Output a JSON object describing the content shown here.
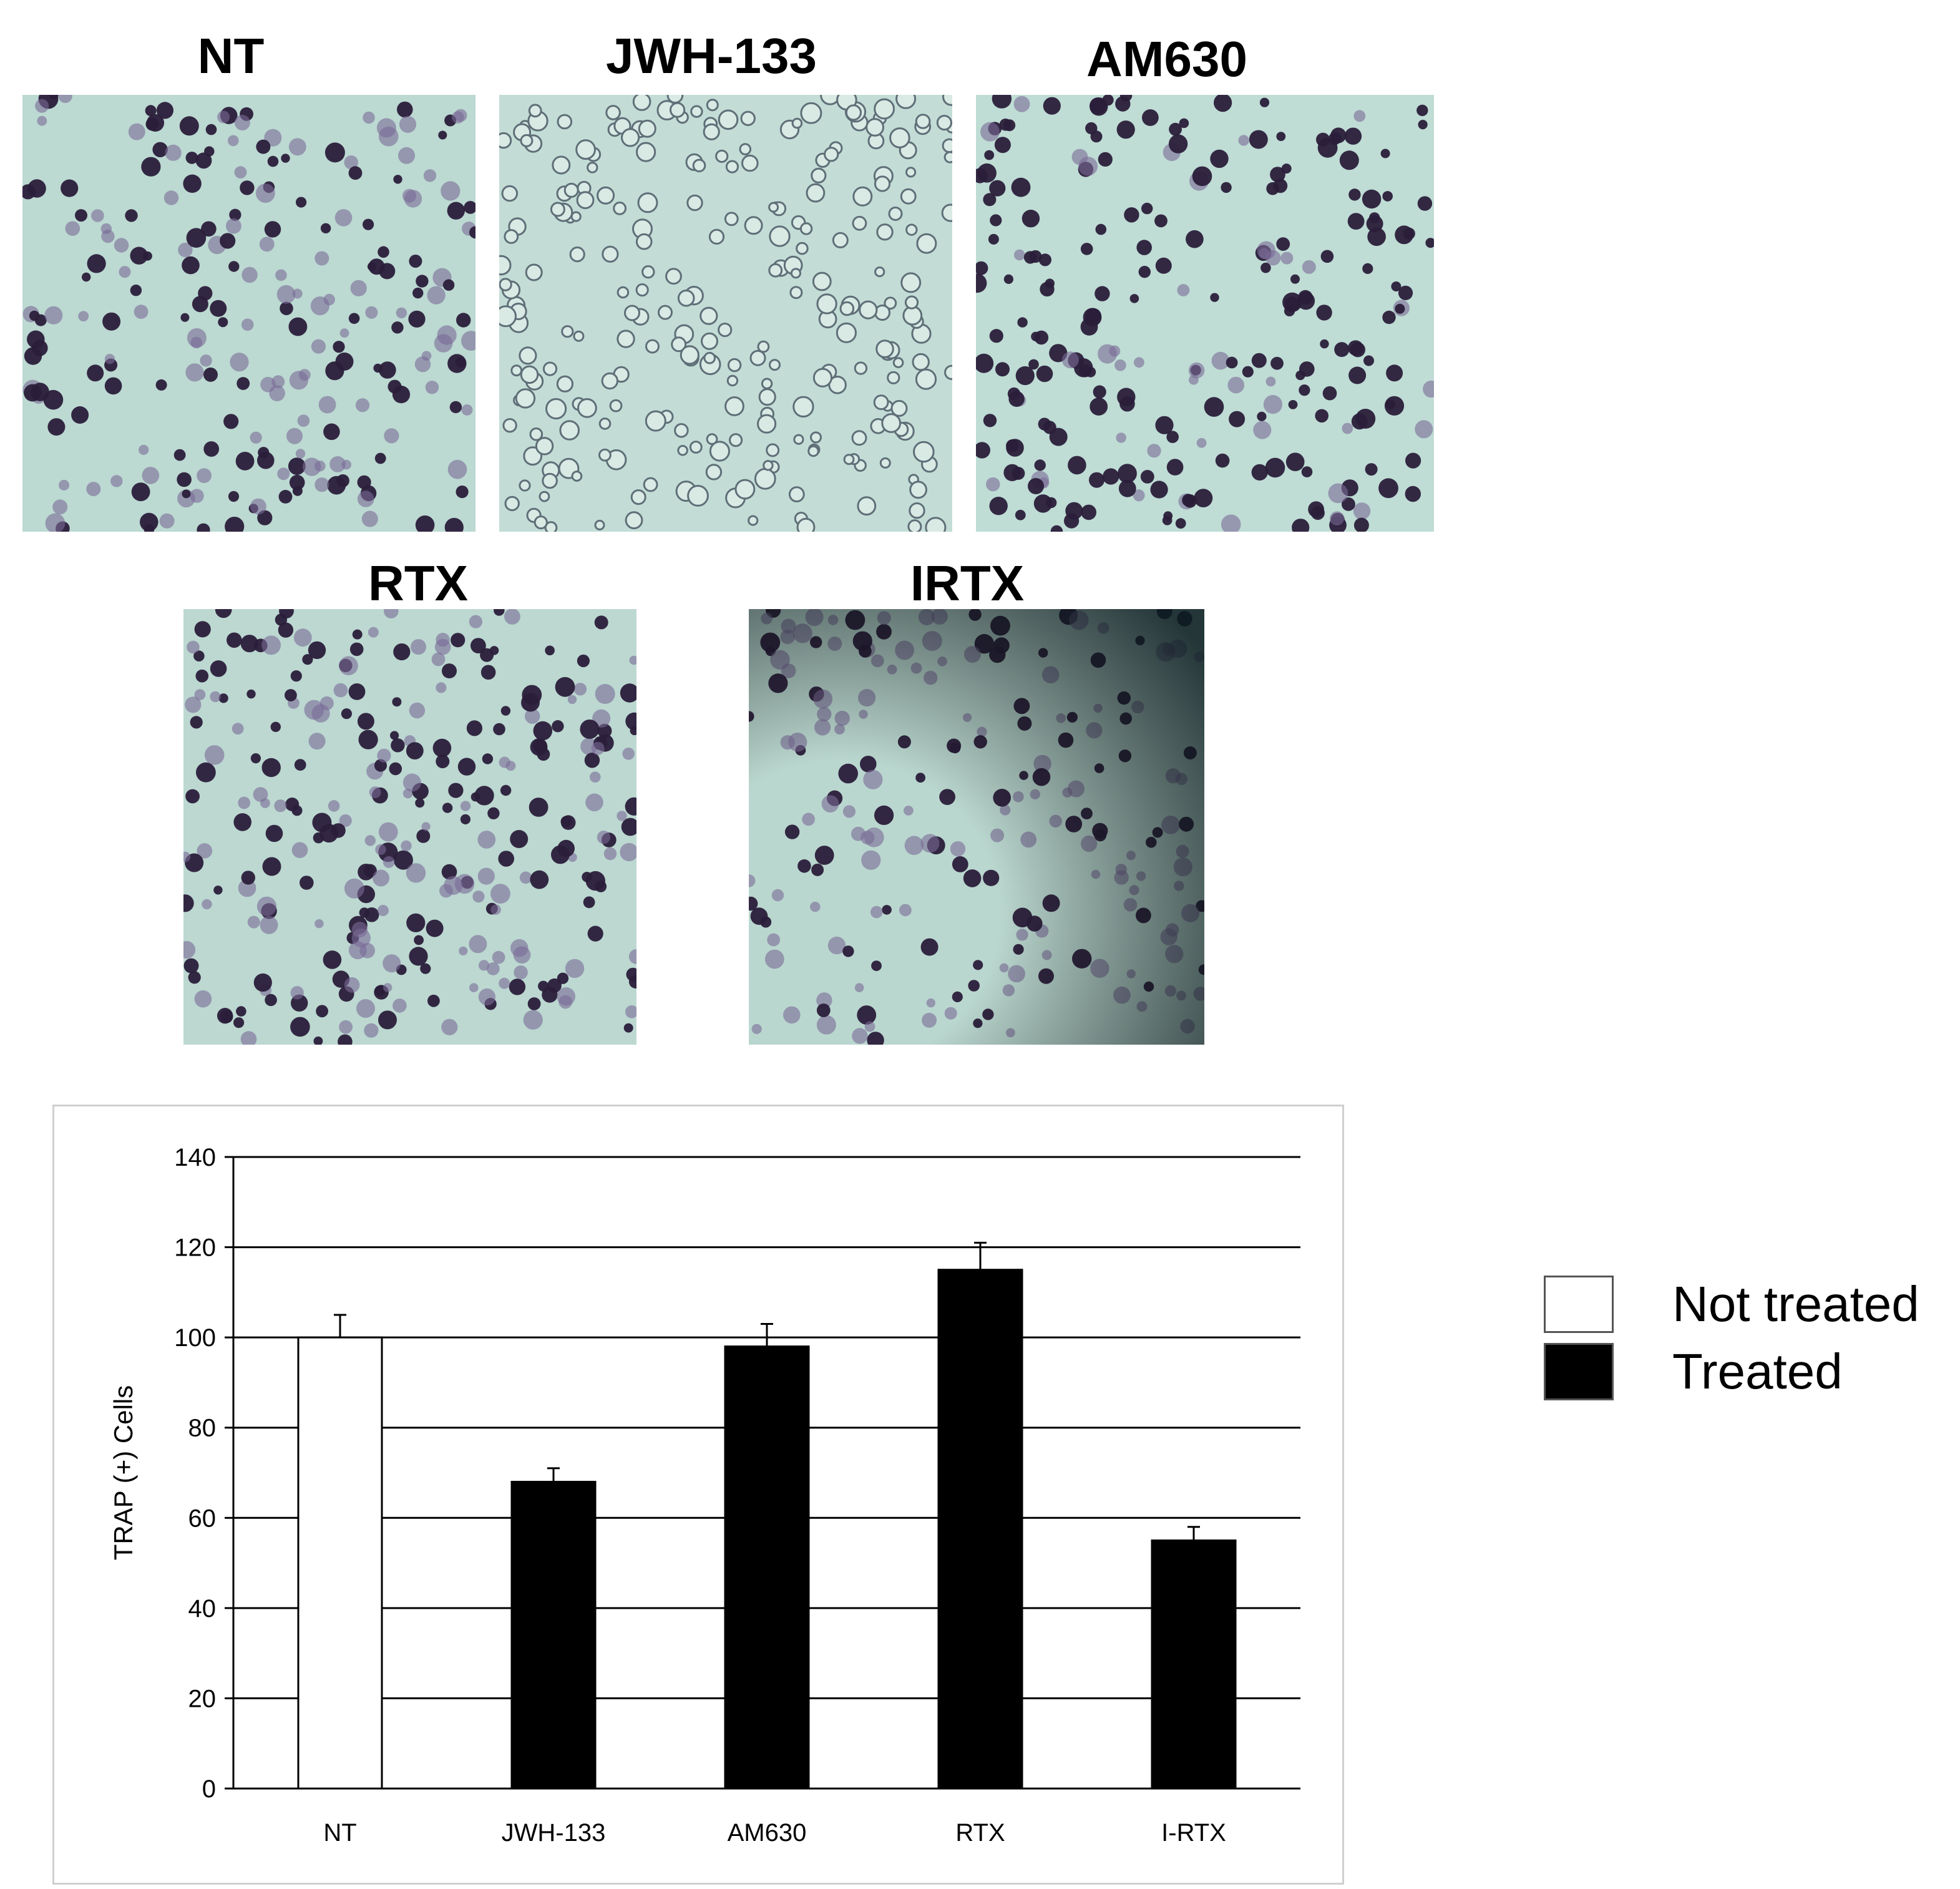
{
  "panels": [
    {
      "title": "NT"
    },
    {
      "title": "JWH-133"
    },
    {
      "title": "AM630"
    },
    {
      "title": "RTX"
    },
    {
      "title": "IRTX"
    }
  ],
  "chart_data": {
    "type": "bar",
    "title": "",
    "xlabel": "",
    "ylabel": "TRAP (+) Cells",
    "ylim": [
      0,
      140
    ],
    "yticks": [
      0,
      20,
      40,
      60,
      80,
      100,
      120,
      140
    ],
    "grid": "horizontal",
    "categories": [
      "NT",
      "JWH-133",
      "AM630",
      "RTX",
      "I-RTX"
    ],
    "values": [
      100,
      68,
      98,
      115,
      55
    ],
    "errors": [
      5,
      3,
      5,
      6,
      3
    ],
    "bar_colors": [
      "#ffffff",
      "#000000",
      "#000000",
      "#000000",
      "#000000"
    ],
    "legend_position": "right",
    "legend": [
      {
        "label": "Not treated",
        "color": "#ffffff"
      },
      {
        "label": "Treated",
        "color": "#000000"
      }
    ]
  }
}
